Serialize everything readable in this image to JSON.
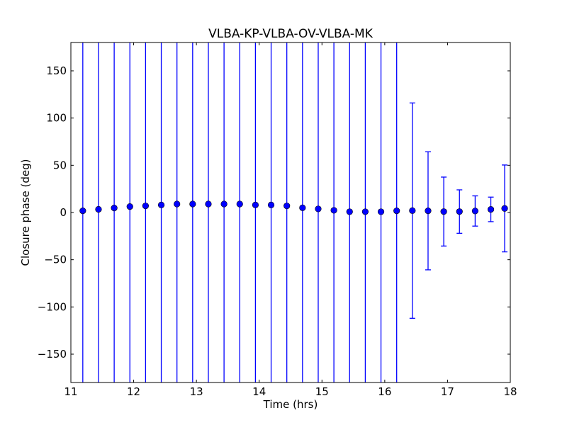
{
  "chart_data": {
    "type": "scatter",
    "title": "VLBA-KP-VLBA-OV-VLBA-MK",
    "xlabel": "Time (hrs)",
    "ylabel": "Closure phase (deg)",
    "xlim": [
      11,
      18
    ],
    "ylim": [
      -180,
      180
    ],
    "xticks": [
      11,
      12,
      13,
      14,
      15,
      16,
      17,
      18
    ],
    "xtick_labels": [
      "11",
      "12",
      "13",
      "14",
      "15",
      "16",
      "17",
      "18"
    ],
    "yticks": [
      -150,
      -100,
      -50,
      0,
      50,
      100,
      150
    ],
    "ytick_labels": [
      "−150",
      "−100",
      "−50",
      "0",
      "50",
      "100",
      "150"
    ],
    "grid": false,
    "marker_color": "#0000ff",
    "errorbar_color": "#0000ff",
    "series": [
      {
        "name": "closure phase",
        "x": [
          11.19,
          11.44,
          11.69,
          11.94,
          12.19,
          12.44,
          12.69,
          12.94,
          13.19,
          13.44,
          13.69,
          13.94,
          14.19,
          14.44,
          14.69,
          14.94,
          15.19,
          15.44,
          15.69,
          15.94,
          16.19,
          16.44,
          16.69,
          16.94,
          17.19,
          17.44,
          17.69,
          17.91
        ],
        "y": [
          1.8,
          3.4,
          4.8,
          6.3,
          7,
          8,
          9,
          9,
          9,
          9,
          9,
          8,
          8,
          7,
          5,
          3.8,
          2.3,
          0.8,
          0.8,
          0.8,
          1.8,
          2,
          1.8,
          1,
          1,
          1.6,
          3.3,
          4.3
        ],
        "yerr": [
          1000,
          1000,
          1000,
          1000,
          1000,
          1000,
          1000,
          1000,
          1000,
          1000,
          1000,
          1000,
          1000,
          1000,
          1000,
          1000,
          1000,
          1000,
          1000,
          1000,
          1000,
          114,
          62.5,
          36.5,
          23,
          16,
          13,
          46
        ]
      }
    ]
  }
}
